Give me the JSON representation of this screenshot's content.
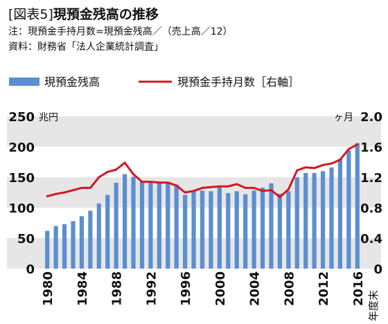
{
  "header": {
    "tag": "[図表5]",
    "title": "現預金残高の推移",
    "note": "注：現預金手持月数=現預金残高／（売上高／12）",
    "source": "資料：財務省「法人企業統計調査」"
  },
  "colors": {
    "bar": "#5b8fd0",
    "line": "#d7141e",
    "band": "#e6e6e6"
  },
  "chart_data": {
    "type": "bar",
    "legend": [
      {
        "key": "bar",
        "label": "現預金残高"
      },
      {
        "key": "line",
        "label": "現預金手持月数［右軸］"
      }
    ],
    "left_axis": {
      "unit": "兆円",
      "ticks": [
        "0",
        "50",
        "100",
        "150",
        "200",
        "250"
      ],
      "ylim": [
        0,
        250
      ]
    },
    "right_axis": {
      "unit": "ヶ月",
      "ticks": [
        "0",
        "0.4",
        "0.8",
        "1.2",
        "1.6",
        "2.0"
      ],
      "ylim": [
        0,
        2.0
      ]
    },
    "x_label": "年度末",
    "x_tick_labels": [
      "1980",
      "1984",
      "1988",
      "1992",
      "1996",
      "2000",
      "2004",
      "2008",
      "2012",
      "2016"
    ],
    "grid": "alternating horizontal bands",
    "series": [
      {
        "name": "現預金残高",
        "x": [
          1980,
          1981,
          1982,
          1983,
          1984,
          1985,
          1986,
          1987,
          1988,
          1989,
          1990,
          1991,
          1992,
          1993,
          1994,
          1995,
          1996,
          1997,
          1998,
          1999,
          2000,
          2001,
          2002,
          2003,
          2004,
          2005,
          2006,
          2007,
          2008,
          2009,
          2010,
          2011,
          2012,
          2013,
          2014,
          2015,
          2016
        ],
        "values": [
          62,
          70,
          73,
          78,
          86,
          95,
          107,
          121,
          141,
          155,
          151,
          144,
          143,
          141,
          140,
          138,
          121,
          127,
          128,
          127,
          135,
          124,
          127,
          122,
          128,
          133,
          140,
          123,
          127,
          150,
          157,
          157,
          160,
          166,
          180,
          194,
          206
        ]
      },
      {
        "name": "現預金手持月数［右軸］",
        "x": [
          1980,
          1981,
          1982,
          1983,
          1984,
          1985,
          1986,
          1987,
          1988,
          1989,
          1990,
          1991,
          1992,
          1993,
          1994,
          1995,
          1996,
          1997,
          1998,
          1999,
          2000,
          2001,
          2002,
          2003,
          2004,
          2005,
          2006,
          2007,
          2008,
          2009,
          2010,
          2011,
          2012,
          2013,
          2014,
          2015,
          2016
        ],
        "values": [
          0.95,
          0.98,
          1.0,
          1.03,
          1.06,
          1.06,
          1.2,
          1.27,
          1.3,
          1.39,
          1.24,
          1.14,
          1.14,
          1.13,
          1.13,
          1.09,
          1.0,
          1.02,
          1.06,
          1.07,
          1.08,
          1.08,
          1.11,
          1.06,
          1.06,
          1.02,
          1.03,
          0.94,
          1.04,
          1.29,
          1.33,
          1.32,
          1.36,
          1.38,
          1.43,
          1.57,
          1.63
        ]
      }
    ]
  }
}
